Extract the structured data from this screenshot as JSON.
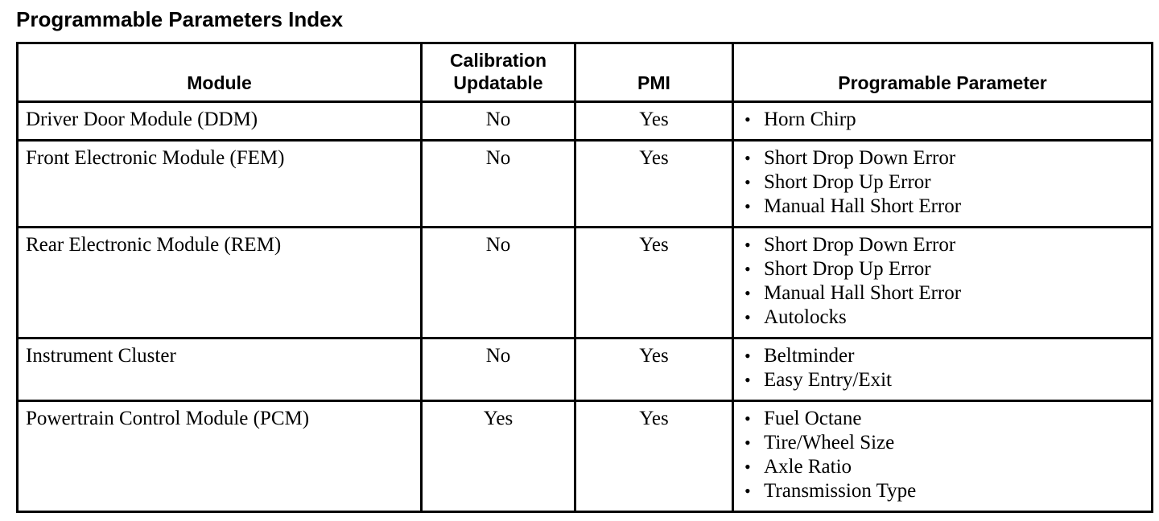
{
  "title": "Programmable Parameters Index",
  "table": {
    "bullet_char": "•",
    "columns": [
      {
        "id": "module",
        "label": "Module"
      },
      {
        "id": "calibration_updatable",
        "label": "Calibration Updatable"
      },
      {
        "id": "pmi",
        "label": "PMI"
      },
      {
        "id": "parameters",
        "label": "Programable Parameter"
      }
    ],
    "rows": [
      {
        "module": "Driver Door Module (DDM)",
        "calibration_updatable": "No",
        "pmi": "Yes",
        "parameters": [
          "Horn Chirp"
        ]
      },
      {
        "module": "Front Electronic Module (FEM)",
        "calibration_updatable": "No",
        "pmi": "Yes",
        "parameters": [
          "Short Drop Down Error",
          "Short Drop Up Error",
          "Manual Hall Short Error"
        ]
      },
      {
        "module": "Rear Electronic Module (REM)",
        "calibration_updatable": "No",
        "pmi": "Yes",
        "parameters": [
          "Short Drop Down Error",
          "Short Drop Up Error",
          "Manual Hall Short Error",
          "Autolocks"
        ]
      },
      {
        "module": "Instrument Cluster",
        "calibration_updatable": "No",
        "pmi": "Yes",
        "parameters": [
          "Beltminder",
          "Easy Entry/Exit"
        ]
      },
      {
        "module": "Powertrain Control Module (PCM)",
        "calibration_updatable": "Yes",
        "pmi": "Yes",
        "parameters": [
          "Fuel Octane",
          "Tire/Wheel Size",
          "Axle Ratio",
          "Transmission Type"
        ]
      }
    ]
  },
  "colors": {
    "text": "#000000",
    "border": "#000000",
    "background": "#ffffff"
  }
}
